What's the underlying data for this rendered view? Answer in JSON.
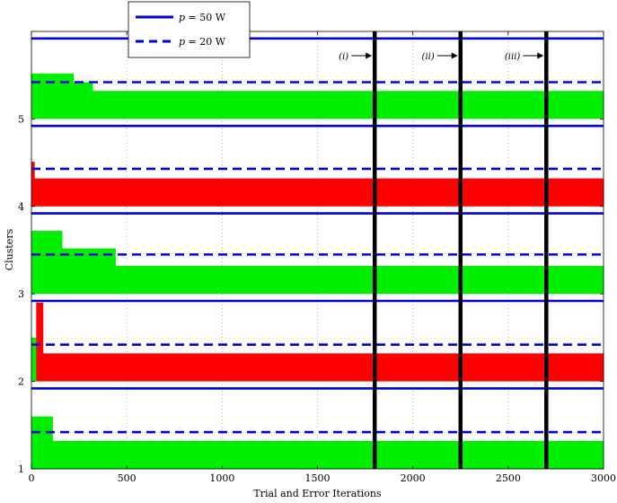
{
  "chart_data": {
    "type": "bar",
    "title": "",
    "xlabel": "Trial and Error Iterations",
    "ylabel": "Clusters",
    "xlim": [
      0,
      3000
    ],
    "ylim": [
      1,
      6
    ],
    "xticks": [
      0,
      500,
      1000,
      1500,
      2000,
      2500,
      3000
    ],
    "yticks": [
      1,
      2,
      3,
      4,
      5
    ],
    "grid": "vertical dotted",
    "colors": {
      "green": "#00ee00",
      "red": "#ff0000",
      "blue": "#0000dd",
      "black": "#000000"
    },
    "legend": {
      "placement": "top-left",
      "entries": [
        {
          "label_prefix": "p",
          "label_suffix": " = 50 W",
          "style": "solid",
          "color": "#0000dd"
        },
        {
          "label_prefix": "p",
          "label_suffix": " = 20 W",
          "style": "dashed",
          "color": "#0000dd"
        }
      ]
    },
    "thresholds": [
      {
        "cluster": 1,
        "p50": 1.92,
        "p20": 1.42
      },
      {
        "cluster": 2,
        "p50": 2.92,
        "p20": 2.42
      },
      {
        "cluster": 3,
        "p50": 3.92,
        "p20": 3.45
      },
      {
        "cluster": 4,
        "p50": 4.92,
        "p20": 4.43
      },
      {
        "cluster": 5,
        "p50": 5.92,
        "p20": 5.42
      }
    ],
    "series": [
      {
        "cluster": 1,
        "color": "green",
        "segments": [
          {
            "x0": 0,
            "x1": 110,
            "top": 1.6
          },
          {
            "x0": 110,
            "x1": 3000,
            "top": 1.32
          }
        ]
      },
      {
        "cluster": 2,
        "color": "red",
        "segments": [
          {
            "x0": 0,
            "x1": 25,
            "top": 2.5,
            "color": "green"
          },
          {
            "x0": 25,
            "x1": 60,
            "top": 2.9
          },
          {
            "x0": 60,
            "x1": 3000,
            "top": 2.32
          }
        ]
      },
      {
        "cluster": 3,
        "color": "green",
        "segments": [
          {
            "x0": 0,
            "x1": 160,
            "top": 3.72
          },
          {
            "x0": 160,
            "x1": 440,
            "top": 3.52
          },
          {
            "x0": 440,
            "x1": 3000,
            "top": 3.32
          }
        ]
      },
      {
        "cluster": 4,
        "color": "red",
        "segments": [
          {
            "x0": 0,
            "x1": 15,
            "top": 4.51
          },
          {
            "x0": 15,
            "x1": 3000,
            "top": 4.32
          }
        ]
      },
      {
        "cluster": 5,
        "color": "green",
        "segments": [
          {
            "x0": 0,
            "x1": 220,
            "top": 5.52
          },
          {
            "x0": 220,
            "x1": 320,
            "top": 5.42
          },
          {
            "x0": 320,
            "x1": 3000,
            "top": 5.32
          }
        ]
      }
    ],
    "markers": [
      {
        "x": 1800,
        "label": "(i)"
      },
      {
        "x": 2250,
        "label": "(ii)"
      },
      {
        "x": 2700,
        "label": "(iii)"
      }
    ]
  }
}
